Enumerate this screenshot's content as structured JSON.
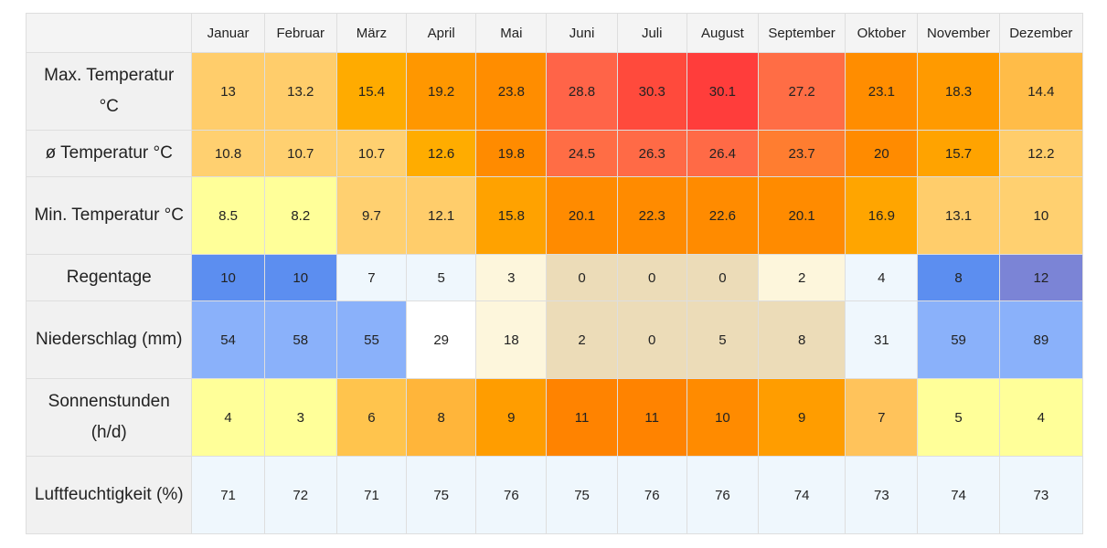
{
  "chart_data": {
    "type": "table",
    "columns": [
      "Januar",
      "Februar",
      "März",
      "April",
      "Mai",
      "Juni",
      "Juli",
      "August",
      "September",
      "Oktober",
      "November",
      "Dezember"
    ],
    "rows": [
      {
        "label": "Max. Temperatur °C",
        "values": [
          "13",
          "13.2",
          "15.4",
          "19.2",
          "23.8",
          "28.8",
          "30.3",
          "30.1",
          "27.2",
          "23.1",
          "18.3",
          "14.4"
        ],
        "colors": [
          "#ffcd6b",
          "#ffcd6b",
          "#ffab00",
          "#ff9700",
          "#ff8d00",
          "#ff6448",
          "#ff4a3c",
          "#ff3d3b",
          "#ff6d45",
          "#ff8d00",
          "#ff9a00",
          "#ffbc48"
        ]
      },
      {
        "label": "ø Temperatur °C",
        "values": [
          "10.8",
          "10.7",
          "10.7",
          "12.6",
          "19.8",
          "24.5",
          "26.3",
          "26.4",
          "23.7",
          "20",
          "15.7",
          "12.2"
        ],
        "colors": [
          "#ffd070",
          "#ffd070",
          "#ffd070",
          "#ffac00",
          "#ff8b00",
          "#ff6d45",
          "#ff6a46",
          "#ff6a46",
          "#ff7d30",
          "#ff8b00",
          "#ffa300",
          "#ffcd6b"
        ]
      },
      {
        "label": "Min. Temperatur °C",
        "values": [
          "8.5",
          "8.2",
          "9.7",
          "12.1",
          "15.8",
          "20.1",
          "22.3",
          "22.6",
          "20.1",
          "16.9",
          "13.1",
          "10"
        ],
        "colors": [
          "#ffff99",
          "#ffff99",
          "#ffd070",
          "#ffcd6b",
          "#ffa200",
          "#ff8b00",
          "#ff8b00",
          "#ff8b00",
          "#ff8b00",
          "#ffa500",
          "#ffcd6b",
          "#ffd070"
        ]
      },
      {
        "label": "Regentage",
        "values": [
          "10",
          "10",
          "7",
          "5",
          "3",
          "0",
          "0",
          "0",
          "2",
          "4",
          "8",
          "12"
        ],
        "colors": [
          "#5c8ef0",
          "#5c8ef0",
          "#eff7fd",
          "#eff7fd",
          "#fdf6dc",
          "#ecdcb8",
          "#ecdcb8",
          "#ecdcb8",
          "#fdf6dc",
          "#eff7fd",
          "#5c8ef0",
          "#7b84d6"
        ]
      },
      {
        "label": "Niederschlag (mm)",
        "values": [
          "54",
          "58",
          "55",
          "29",
          "18",
          "2",
          "0",
          "5",
          "8",
          "31",
          "59",
          "89"
        ],
        "colors": [
          "#8ab1fa",
          "#8ab1fa",
          "#8ab1fa",
          "#ffffff",
          "#fdf6dc",
          "#ecdcb8",
          "#ecdcb8",
          "#ecdcb8",
          "#ecdcb8",
          "#eff7fd",
          "#8ab1fa",
          "#8ab1fa"
        ]
      },
      {
        "label": "Sonnenstunden (h/d)",
        "values": [
          "4",
          "3",
          "6",
          "8",
          "9",
          "11",
          "11",
          "10",
          "9",
          "7",
          "5",
          "4"
        ],
        "colors": [
          "#ffff99",
          "#ffff99",
          "#ffc44d",
          "#ffb53a",
          "#ff9d00",
          "#ff8300",
          "#ff8300",
          "#ff8b00",
          "#ff9d00",
          "#ffc35b",
          "#ffff99",
          "#ffff99"
        ]
      },
      {
        "label": "Luftfeuchtigkeit (%)",
        "values": [
          "71",
          "72",
          "71",
          "75",
          "76",
          "75",
          "76",
          "76",
          "74",
          "73",
          "74",
          "73"
        ],
        "colors": [
          "#eff7fd",
          "#eff7fd",
          "#eff7fd",
          "#eff7fd",
          "#eff7fd",
          "#eff7fd",
          "#eff7fd",
          "#eff7fd",
          "#eff7fd",
          "#eff7fd",
          "#eff7fd",
          "#eff7fd"
        ]
      }
    ]
  }
}
